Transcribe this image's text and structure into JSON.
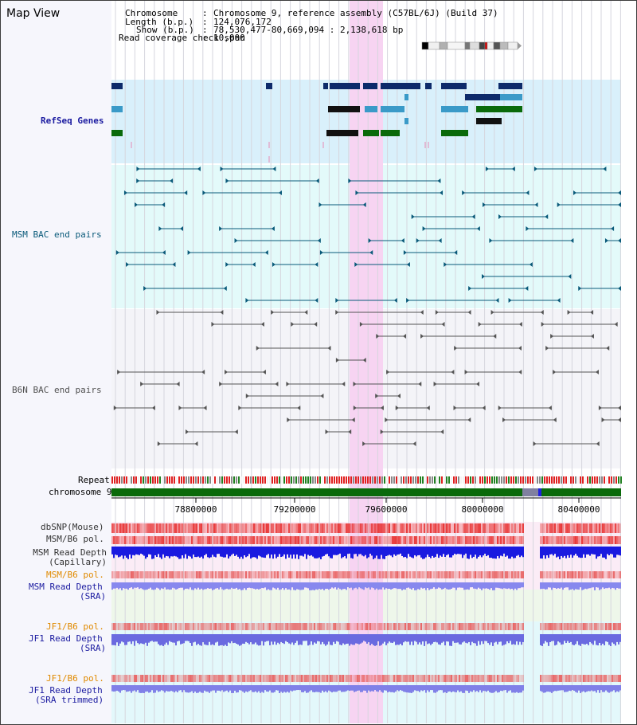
{
  "page": {
    "title": "Map View"
  },
  "info": {
    "chromosome_label": "Chromosome",
    "chromosome_value": "Chromosome 9, reference assembly (C57BL/6J) (Build 37)",
    "length_label": "Length (b.p.)",
    "length_value": "124,076,172",
    "show_label": "Show (b.p.)",
    "show_value": "78,530,477-80,669,094 : 2,138,618 bp",
    "coverage_label": "Read coverage check span",
    "coverage_value": "10,000"
  },
  "tracks": {
    "refseq": {
      "label": "RefSeq Genes",
      "color": "#1a1aa0"
    },
    "msm_bac": {
      "label": "MSM BAC end pairs",
      "color": "#0a5a7a"
    },
    "b6n_bac": {
      "label": "B6N BAC end pairs",
      "color": "#505050"
    },
    "repeat": {
      "label": "Repeat"
    },
    "chromosome": {
      "label": "chromosome 9"
    },
    "dbsnp": {
      "label": "dbSNP(Mouse)"
    },
    "msm_b6_pol_1": {
      "label": "MSM/B6 pol."
    },
    "msm_depth_cap": {
      "label_line1": "MSM Read Depth",
      "label_line2": "(Capillary)"
    },
    "msm_b6_pol_2": {
      "label": "MSM/B6 pol."
    },
    "msm_depth_sra": {
      "label_line1": "MSM Read Depth",
      "label_line2": "(SRA)"
    },
    "jf1_b6_pol_1": {
      "label": "JF1/B6 pol."
    },
    "jf1_depth_sra": {
      "label_line1": "JF1 Read Depth",
      "label_line2": "(SRA)"
    },
    "jf1_b6_pol_2": {
      "label": "JF1/B6 pol."
    },
    "jf1_depth_trim": {
      "label_line1": "JF1 Read Depth",
      "label_line2": "(SRA trimmed)"
    }
  },
  "axis": {
    "ticks": [
      "78800000",
      "79200000",
      "79600000",
      "80000000",
      "80400000"
    ]
  },
  "colors": {
    "highlight": "#f7d4f2",
    "refseq_bg": "#d9f0fb",
    "msm_bg": "#e3fafa",
    "b6n_bg": "#f4f4f8",
    "pol_label": "#e08a00",
    "depth_label": "#1a1aa0",
    "chromosome_bar": "#0a6a0a"
  }
}
